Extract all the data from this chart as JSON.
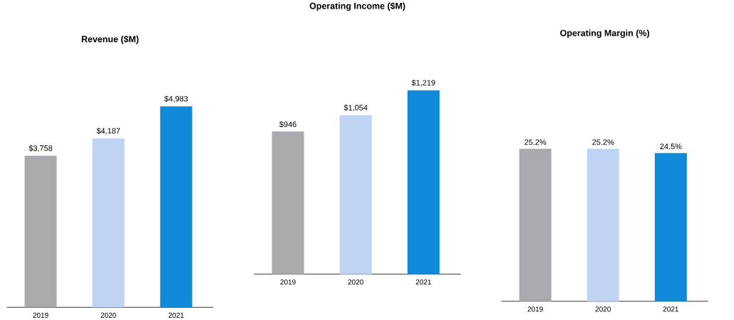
{
  "chart_data": [
    {
      "type": "bar",
      "title": "Revenue ($M)",
      "categories": [
        "2019",
        "2020",
        "2021"
      ],
      "values": [
        3758,
        4187,
        4983
      ],
      "colors": [
        "#a9aaae",
        "#bfd3f2",
        "#0f8ad8"
      ],
      "value_labels": [
        "$3,758",
        "$4,187",
        "$4,983"
      ]
    },
    {
      "type": "bar",
      "title": "Operating Income ($M)",
      "categories": [
        "2019",
        "2020",
        "2021"
      ],
      "values": [
        946,
        1054,
        1219
      ],
      "colors": [
        "#a9aaae",
        "#bfd3f2",
        "#0f8ad8"
      ],
      "value_labels": [
        "$946",
        "$1,054",
        "$1,219"
      ]
    },
    {
      "type": "bar",
      "title": "Operating Margin (%)",
      "categories": [
        "2019",
        "2020",
        "2021"
      ],
      "values": [
        25.2,
        25.2,
        24.5
      ],
      "colors": [
        "#a9aaae",
        "#bfd3f2",
        "#0f8ad8"
      ],
      "value_labels": [
        "25.2%",
        "25.2%",
        "24.5%"
      ]
    }
  ]
}
